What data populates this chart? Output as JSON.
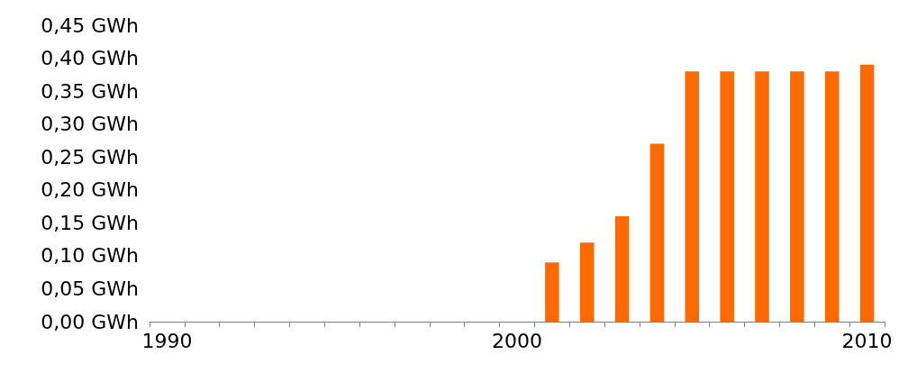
{
  "chart_data": {
    "type": "bar",
    "categories": [
      "1990",
      null,
      null,
      null,
      null,
      null,
      null,
      null,
      null,
      null,
      "2000",
      null,
      null,
      null,
      null,
      null,
      null,
      null,
      null,
      null,
      "2010"
    ],
    "values": [
      0,
      0,
      0,
      0,
      0,
      0,
      0,
      0,
      0,
      0,
      0,
      0.09,
      0.12,
      0.16,
      0.27,
      0.38,
      0.38,
      0.38,
      0.38,
      0.38,
      0.39
    ],
    "color": "#ff6a00",
    "ylim": [
      0,
      0.45
    ],
    "yticks": [
      {
        "value": 0,
        "label": "0,00 GWh"
      },
      {
        "value": 0.05,
        "label": "0,05 GWh"
      },
      {
        "value": 0.1,
        "label": "0,10 GWh"
      },
      {
        "value": 0.15,
        "label": "0,15 GWh"
      },
      {
        "value": 0.2,
        "label": "0,20 GWh"
      },
      {
        "value": 0.25,
        "label": "0,25 GWh"
      },
      {
        "value": 0.3,
        "label": "0,30 GWh"
      },
      {
        "value": 0.35,
        "label": "0,35 GWh"
      },
      {
        "value": 0.4,
        "label": "0,40 GWh"
      },
      {
        "value": 0.45,
        "label": "0,45 GWh"
      }
    ],
    "grid": false
  }
}
